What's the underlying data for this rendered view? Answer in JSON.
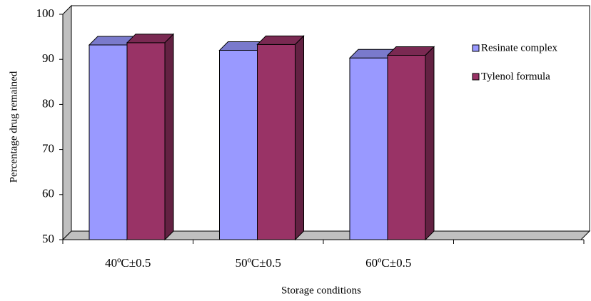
{
  "chart_data": {
    "type": "bar3d",
    "x_label": "Storage conditions",
    "y_label": "Percentage drug remained",
    "categories": [
      "40ºC±0.5",
      "50ºC±0.5",
      "60ºC±0.5",
      null
    ],
    "series": [
      {
        "name": "Resinate complex",
        "color": "#9999ff",
        "values": [
          93.2,
          92.0,
          90.3,
          null
        ]
      },
      {
        "name": "Tylenol formula",
        "color": "#993366",
        "values": [
          93.7,
          93.3,
          90.9,
          null
        ]
      }
    ],
    "ylim": [
      50,
      100
    ],
    "yticks": [
      50,
      60,
      70,
      80,
      90,
      100
    ],
    "grid": false,
    "legend": "right"
  }
}
